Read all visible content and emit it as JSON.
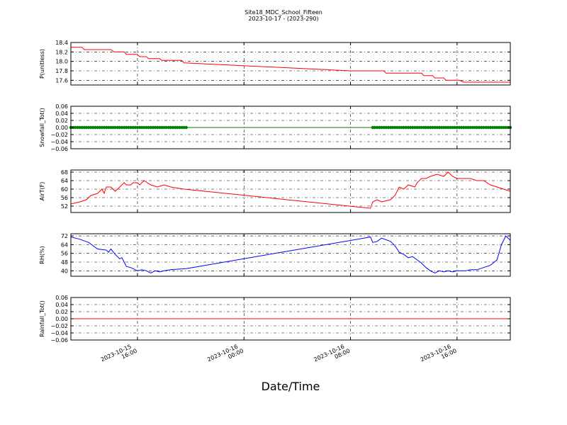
{
  "title": "Site18_MDC_School_Fifteen",
  "subtitle": "2023-10-17 - (2023-290)",
  "x_axis": {
    "label": "Date/Time",
    "range": [
      "2023-10-15 11:00",
      "2023-10-16 20:00"
    ],
    "ticks": [
      {
        "t": "2023-10-15 16:00",
        "line1": "2023-10-15",
        "line2": "16:00"
      },
      {
        "t": "2023-10-16 00:00",
        "line1": "2023-10-16",
        "line2": "00:00"
      },
      {
        "t": "2023-10-16 08:00",
        "line1": "2023-10-16",
        "line2": "08:00"
      },
      {
        "t": "2023-10-16 16:00",
        "line1": "2023-10-16",
        "line2": "16:00"
      }
    ]
  },
  "chart_data": [
    {
      "type": "line",
      "ylabel": "P(unitless)",
      "ylim": [
        17.5,
        18.4
      ],
      "yticks": [
        "18.4",
        "18.2",
        "18.0",
        "17.8",
        "17.6"
      ],
      "ytick_values": [
        18.4,
        18.2,
        18.0,
        17.8,
        17.6
      ],
      "grid": true,
      "color": "#ff0000",
      "marker": false,
      "points": [
        [
          "2023-10-15 11:00",
          18.3
        ],
        [
          "2023-10-15 11:50",
          18.3
        ],
        [
          "2023-10-15 12:00",
          18.25
        ],
        [
          "2023-10-15 14:00",
          18.25
        ],
        [
          "2023-10-15 14:15",
          18.2
        ],
        [
          "2023-10-15 15:00",
          18.2
        ],
        [
          "2023-10-15 15:10",
          18.15
        ],
        [
          "2023-10-15 16:00",
          18.15
        ],
        [
          "2023-10-15 16:10",
          18.1
        ],
        [
          "2023-10-15 16:40",
          18.1
        ],
        [
          "2023-10-15 16:50",
          18.06
        ],
        [
          "2023-10-15 17:40",
          18.06
        ],
        [
          "2023-10-15 17:50",
          18.02
        ],
        [
          "2023-10-15 19:20",
          18.02
        ],
        [
          "2023-10-15 19:30",
          17.97
        ],
        [
          "2023-10-16 08:00",
          17.8
        ],
        [
          "2023-10-16 09:30",
          17.8
        ],
        [
          "2023-10-16 10:30",
          17.8
        ],
        [
          "2023-10-16 10:40",
          17.75
        ],
        [
          "2023-10-16 13:20",
          17.75
        ],
        [
          "2023-10-16 13:30",
          17.7
        ],
        [
          "2023-10-16 14:10",
          17.7
        ],
        [
          "2023-10-16 14:20",
          17.65
        ],
        [
          "2023-10-16 15:00",
          17.65
        ],
        [
          "2023-10-16 15:10",
          17.6
        ],
        [
          "2023-10-16 16:10",
          17.6
        ],
        [
          "2023-10-16 16:30",
          17.56
        ],
        [
          "2023-10-16 18:00",
          17.56
        ],
        [
          "2023-10-16 20:00",
          17.56
        ]
      ]
    },
    {
      "type": "scatter",
      "ylabel": "Snowfall_Tot()",
      "ylim": [
        -0.06,
        0.06
      ],
      "yticks": [
        "0.06",
        "0.04",
        "0.02",
        "0.00",
        "−0.02",
        "−0.04",
        "−0.06"
      ],
      "ytick_values": [
        0.06,
        0.04,
        0.02,
        0.0,
        -0.02,
        -0.04,
        -0.06
      ],
      "grid": true,
      "color": "#008000",
      "marker": true,
      "points": [
        [
          "2023-10-15 11:00",
          0.0
        ],
        [
          "2023-10-15 19:40",
          0.0
        ],
        [
          "2023-10-16 09:40",
          0.0
        ],
        [
          "2023-10-16 20:00",
          0.0
        ]
      ],
      "marker_segments": [
        [
          "2023-10-15 11:00",
          "2023-10-15 19:40"
        ],
        [
          "2023-10-16 09:40",
          "2023-10-16 20:00"
        ]
      ]
    },
    {
      "type": "line",
      "ylabel": "AirT(F)",
      "ylim": [
        49,
        69
      ],
      "yticks": [
        "68",
        "64",
        "60",
        "56",
        "52"
      ],
      "ytick_values": [
        68,
        64,
        60,
        56,
        52
      ],
      "grid": true,
      "color": "#ff0000",
      "marker": false,
      "points": [
        [
          "2023-10-15 11:00",
          53
        ],
        [
          "2023-10-15 11:40",
          54
        ],
        [
          "2023-10-15 12:10",
          55
        ],
        [
          "2023-10-15 12:30",
          57
        ],
        [
          "2023-10-15 13:00",
          58
        ],
        [
          "2023-10-15 13:20",
          60
        ],
        [
          "2023-10-15 13:30",
          58
        ],
        [
          "2023-10-15 13:40",
          61
        ],
        [
          "2023-10-15 14:00",
          61
        ],
        [
          "2023-10-15 14:20",
          59
        ],
        [
          "2023-10-15 14:40",
          61
        ],
        [
          "2023-10-15 15:00",
          63
        ],
        [
          "2023-10-15 15:10",
          62
        ],
        [
          "2023-10-15 15:30",
          62
        ],
        [
          "2023-10-15 15:40",
          63
        ],
        [
          "2023-10-15 16:00",
          63
        ],
        [
          "2023-10-15 16:10",
          62
        ],
        [
          "2023-10-15 16:30",
          64
        ],
        [
          "2023-10-15 17:00",
          62
        ],
        [
          "2023-10-15 17:30",
          61
        ],
        [
          "2023-10-15 18:00",
          62
        ],
        [
          "2023-10-15 18:30",
          61
        ],
        [
          "2023-10-15 19:30",
          60
        ],
        [
          "2023-10-16 09:30",
          51
        ],
        [
          "2023-10-16 09:40",
          54
        ],
        [
          "2023-10-16 10:00",
          55
        ],
        [
          "2023-10-16 10:20",
          54
        ],
        [
          "2023-10-16 11:00",
          55
        ],
        [
          "2023-10-16 11:20",
          57
        ],
        [
          "2023-10-16 11:40",
          61
        ],
        [
          "2023-10-16 12:00",
          60
        ],
        [
          "2023-10-16 12:20",
          62
        ],
        [
          "2023-10-16 12:50",
          61
        ],
        [
          "2023-10-16 13:00",
          63
        ],
        [
          "2023-10-16 13:20",
          65
        ],
        [
          "2023-10-16 13:40",
          65
        ],
        [
          "2023-10-16 14:00",
          66
        ],
        [
          "2023-10-16 14:30",
          67
        ],
        [
          "2023-10-16 15:00",
          66
        ],
        [
          "2023-10-16 15:20",
          68
        ],
        [
          "2023-10-16 15:40",
          66
        ],
        [
          "2023-10-16 16:00",
          65
        ],
        [
          "2023-10-16 17:00",
          65
        ],
        [
          "2023-10-16 17:30",
          64
        ],
        [
          "2023-10-16 18:00",
          64
        ],
        [
          "2023-10-16 18:30",
          62
        ],
        [
          "2023-10-16 19:00",
          61
        ],
        [
          "2023-10-16 20:00",
          59
        ]
      ]
    },
    {
      "type": "line",
      "ylabel": "RH(%)",
      "ylim": [
        35,
        74
      ],
      "yticks": [
        "72",
        "64",
        "56",
        "48",
        "40"
      ],
      "ytick_values": [
        72,
        64,
        56,
        48,
        40
      ],
      "grid": true,
      "color": "#0000ff",
      "marker": false,
      "points": [
        [
          "2023-10-15 11:00",
          71
        ],
        [
          "2023-10-15 11:40",
          69
        ],
        [
          "2023-10-15 12:20",
          66
        ],
        [
          "2023-10-15 12:40",
          63
        ],
        [
          "2023-10-15 13:00",
          60
        ],
        [
          "2023-10-15 13:40",
          59
        ],
        [
          "2023-10-15 13:50",
          57
        ],
        [
          "2023-10-15 14:00",
          60
        ],
        [
          "2023-10-15 14:20",
          55
        ],
        [
          "2023-10-15 14:40",
          51
        ],
        [
          "2023-10-15 14:50",
          52
        ],
        [
          "2023-10-15 15:00",
          48
        ],
        [
          "2023-10-15 15:10",
          44
        ],
        [
          "2023-10-15 15:30",
          43
        ],
        [
          "2023-10-15 16:00",
          40
        ],
        [
          "2023-10-15 16:20",
          41
        ],
        [
          "2023-10-15 16:40",
          40
        ],
        [
          "2023-10-15 17:00",
          38
        ],
        [
          "2023-10-15 17:20",
          40
        ],
        [
          "2023-10-15 17:40",
          39
        ],
        [
          "2023-10-15 18:00",
          40
        ],
        [
          "2023-10-15 18:30",
          41
        ],
        [
          "2023-10-15 19:40",
          42
        ],
        [
          "2023-10-16 09:30",
          71
        ],
        [
          "2023-10-16 09:40",
          66
        ],
        [
          "2023-10-16 10:00",
          67
        ],
        [
          "2023-10-16 10:20",
          70
        ],
        [
          "2023-10-16 11:00",
          67
        ],
        [
          "2023-10-16 11:20",
          63
        ],
        [
          "2023-10-16 11:40",
          57
        ],
        [
          "2023-10-16 12:00",
          55
        ],
        [
          "2023-10-16 12:20",
          52
        ],
        [
          "2023-10-16 12:40",
          53
        ],
        [
          "2023-10-16 13:00",
          50
        ],
        [
          "2023-10-16 13:20",
          47
        ],
        [
          "2023-10-16 13:40",
          43
        ],
        [
          "2023-10-16 14:00",
          40
        ],
        [
          "2023-10-16 14:20",
          38
        ],
        [
          "2023-10-16 14:40",
          40
        ],
        [
          "2023-10-16 15:00",
          39
        ],
        [
          "2023-10-16 15:20",
          40
        ],
        [
          "2023-10-16 15:40",
          39
        ],
        [
          "2023-10-16 16:00",
          40
        ],
        [
          "2023-10-16 16:40",
          40
        ],
        [
          "2023-10-16 17:00",
          41
        ],
        [
          "2023-10-16 17:30",
          41
        ],
        [
          "2023-10-16 18:00",
          43
        ],
        [
          "2023-10-16 18:30",
          45
        ],
        [
          "2023-10-16 19:00",
          50
        ],
        [
          "2023-10-16 19:20",
          64
        ],
        [
          "2023-10-16 19:40",
          72
        ],
        [
          "2023-10-16 20:00",
          68
        ]
      ]
    },
    {
      "type": "line",
      "ylabel": "Rainfall_Tot()",
      "ylim": [
        -0.06,
        0.06
      ],
      "yticks": [
        "0.06",
        "0.04",
        "0.02",
        "0.00",
        "−0.02",
        "−0.04",
        "−0.06"
      ],
      "ytick_values": [
        0.06,
        0.04,
        0.02,
        0.0,
        -0.02,
        -0.04,
        -0.06
      ],
      "grid": true,
      "color": "#ff0000",
      "marker": false,
      "points": [
        [
          "2023-10-15 11:00",
          0.0
        ],
        [
          "2023-10-16 20:00",
          0.0
        ]
      ]
    }
  ]
}
